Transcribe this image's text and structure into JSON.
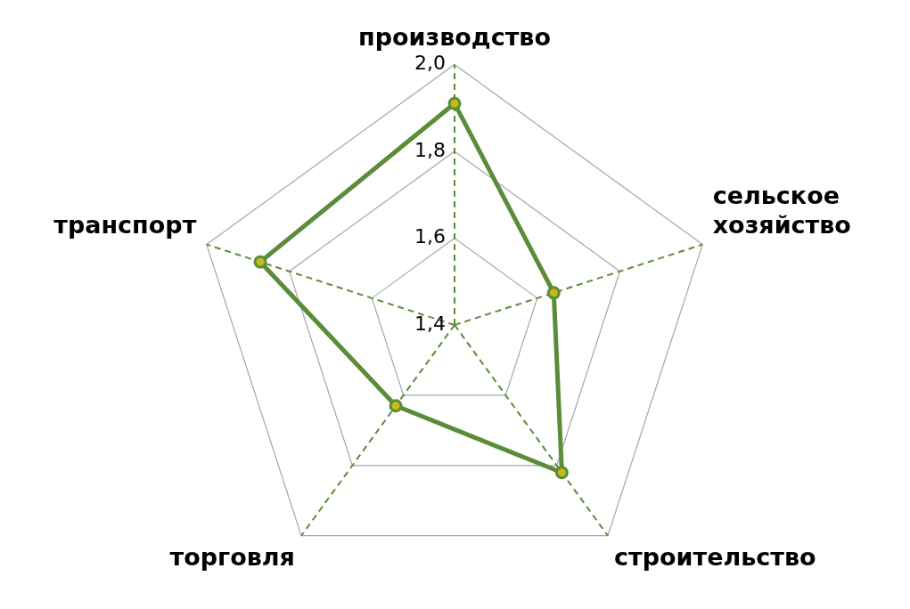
{
  "chart_data": {
    "type": "radar",
    "categories": [
      "производство",
      "сельское хозяйство",
      "строительство",
      "торговля",
      "транспорт"
    ],
    "series": [
      {
        "color": "#5b8c3a",
        "values": [
          1.91,
          1.64,
          1.82,
          1.63,
          1.87
        ]
      }
    ],
    "ylim": [
      1.4,
      2.0
    ],
    "yticks": [
      {
        "value": 1.4,
        "label": "1,4"
      },
      {
        "value": 1.6,
        "label": "1,6"
      },
      {
        "value": 1.8,
        "label": "1,8"
      },
      {
        "value": 2.0,
        "label": "2,0"
      }
    ],
    "grid": true,
    "legend": false,
    "marker": "circle"
  }
}
